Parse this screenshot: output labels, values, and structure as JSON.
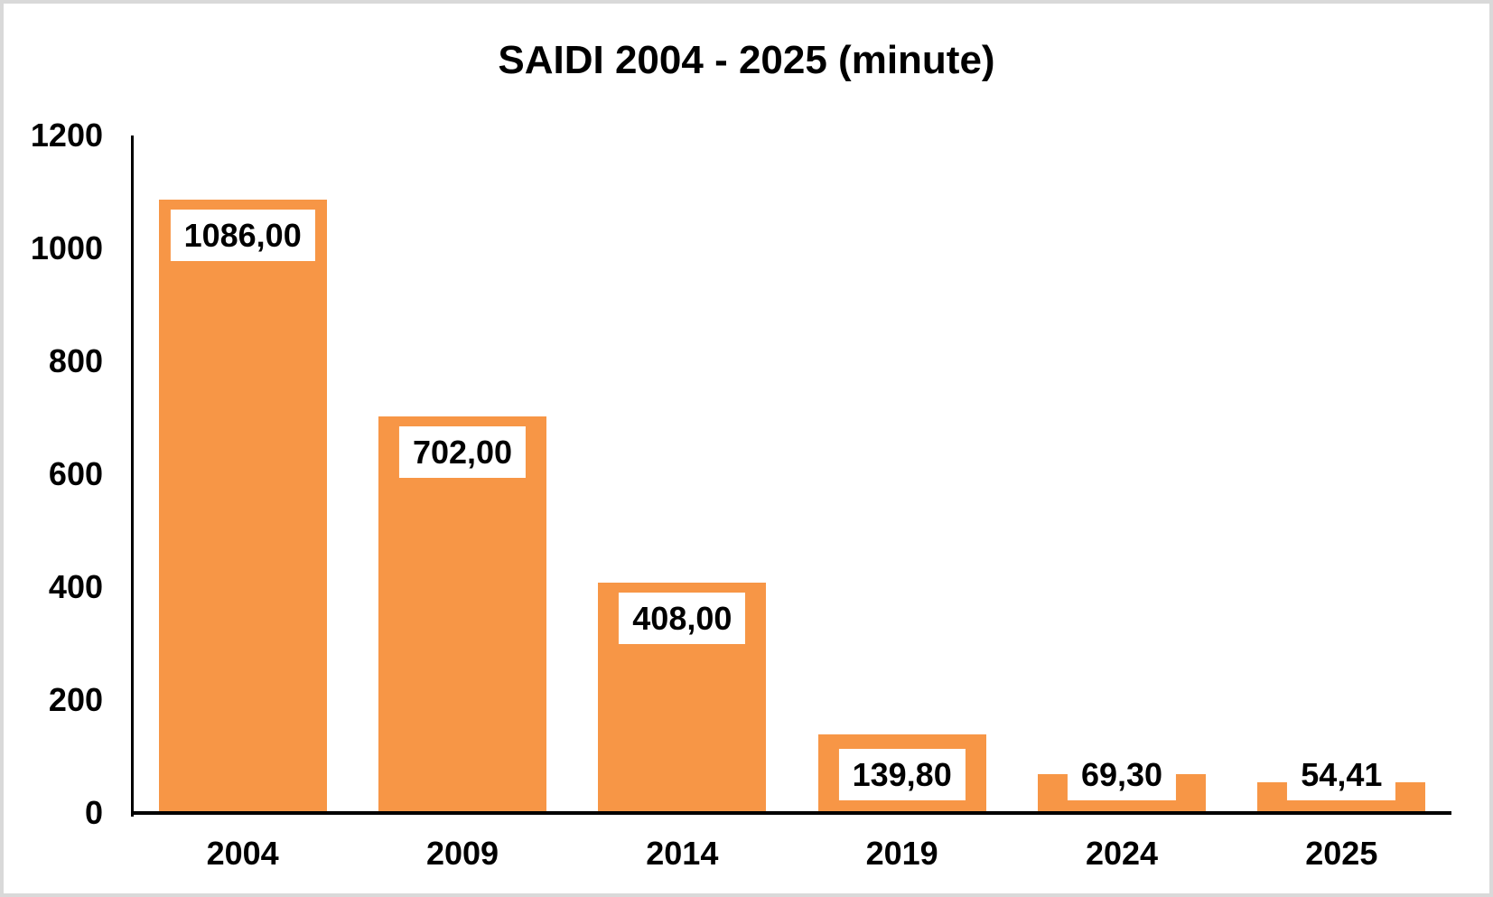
{
  "chart_data": {
    "type": "bar",
    "title": "SAIDI 2004 - 2025 (minute)",
    "categories": [
      "2004",
      "2009",
      "2014",
      "2019",
      "2024",
      "2025"
    ],
    "values": [
      1086.0,
      702.0,
      408.0,
      139.8,
      69.3,
      54.41
    ],
    "data_labels": [
      "1086,00",
      "702,00",
      "408,00",
      "139,80",
      "69,30",
      "54,41"
    ],
    "xlabel": "",
    "ylabel": "",
    "ylim": [
      0,
      1200
    ],
    "yticks": [
      0,
      200,
      400,
      600,
      800,
      1000,
      1200
    ],
    "grid": false,
    "legend_position": "none",
    "bar_color": "#F79646",
    "data_label_bg": "#FFFFFF",
    "data_label_color": "#000000",
    "axis_color": "#000000",
    "background_color": "#FFFFFF",
    "frame_border_color": "#D9D9D9"
  }
}
